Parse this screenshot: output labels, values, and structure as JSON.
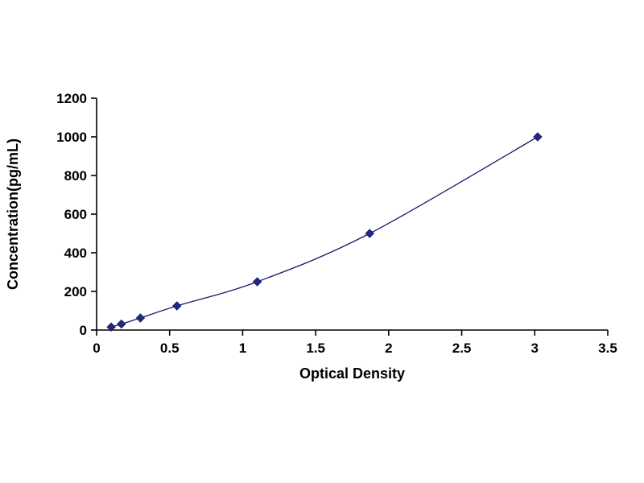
{
  "chart_data": {
    "type": "line",
    "title": "",
    "xlabel": "Optical Density",
    "ylabel": "Concentration(pg/mL)",
    "x": [
      0.1,
      0.17,
      0.3,
      0.55,
      1.1,
      1.87,
      3.02
    ],
    "y": [
      15.6,
      31.2,
      62.5,
      125,
      250,
      500,
      1000
    ],
    "xlim": [
      0,
      3.5
    ],
    "ylim": [
      0,
      1200
    ],
    "x_ticks": [
      0,
      0.5,
      1,
      1.5,
      2,
      2.5,
      3,
      3.5
    ],
    "x_tick_labels": [
      "0",
      "0.5",
      "1",
      "1.5",
      "2",
      "2.5",
      "3",
      "3.5"
    ],
    "y_ticks": [
      0,
      200,
      400,
      600,
      800,
      1000,
      1200
    ],
    "y_tick_labels": [
      "0",
      "200",
      "400",
      "600",
      "800",
      "1000",
      "1200"
    ],
    "grid": false,
    "legend": "none",
    "line_color": "#1b1b6f",
    "marker": "diamond",
    "marker_color": "#232a7c",
    "axis_color": "#000000"
  }
}
